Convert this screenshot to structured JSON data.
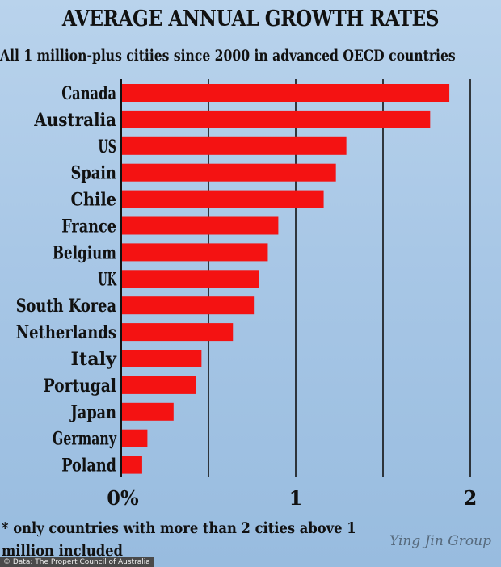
{
  "title": "AVERAGE ANNUAL GROWTH RATES",
  "subtitle": "All 1 million-plus citiies since 2000 in advanced OECD countries",
  "footnote": "* only countries with more than 2 cities above 1 million included",
  "source": "© Data: The Propert Council of Australia",
  "watermark": "Ying Jin Group",
  "colors": {
    "bar": "#f41212",
    "grid": "#111111"
  },
  "chart_data": {
    "type": "bar",
    "orientation": "horizontal",
    "title": "AVERAGE ANNUAL GROWTH RATES",
    "subtitle": "All 1 million-plus citiies since 2000 in advanced OECD countries",
    "xlabel": "",
    "ylabel": "",
    "categories": [
      "Canada",
      "Australia",
      "US",
      "Spain",
      "Chile",
      "France",
      "Belgium",
      "UK",
      "South Korea",
      "Netherlands",
      "Italy",
      "Portugal",
      "Japan",
      "Germany",
      "Poland"
    ],
    "values": [
      1.88,
      1.77,
      1.29,
      1.23,
      1.16,
      0.9,
      0.84,
      0.79,
      0.76,
      0.64,
      0.46,
      0.43,
      0.3,
      0.15,
      0.12
    ],
    "xlim": [
      0,
      2.1
    ],
    "xticks": [
      0,
      1,
      2
    ],
    "xtick_labels": [
      "0%",
      "1",
      "2"
    ],
    "gridlines": [
      0.5,
      1,
      1.5,
      2
    ],
    "grid": true,
    "legend": "none"
  }
}
